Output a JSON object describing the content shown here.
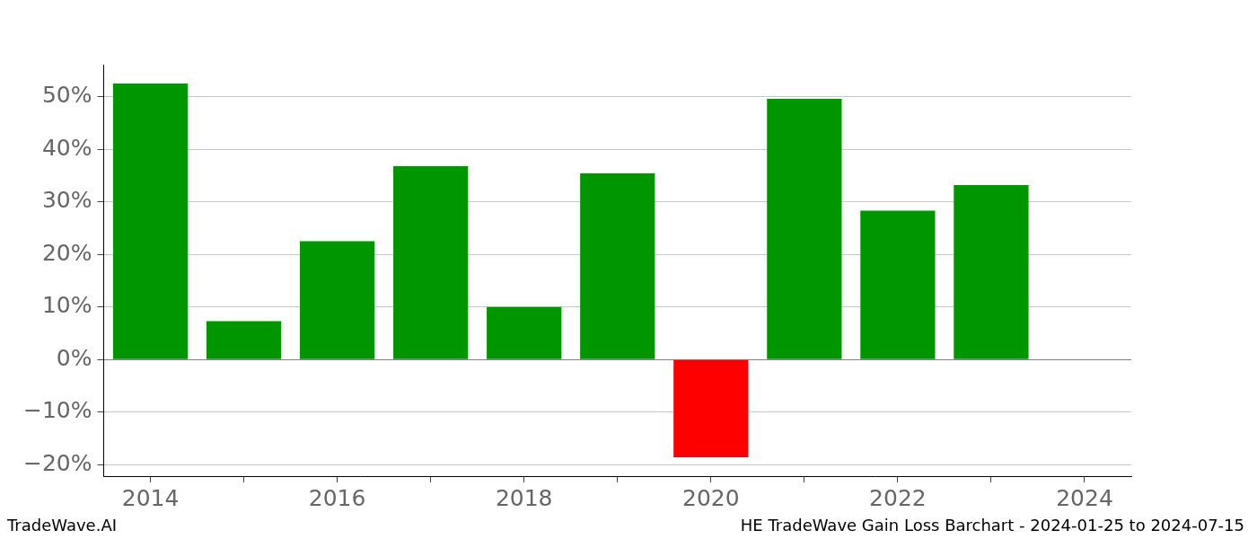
{
  "chart_data": {
    "type": "bar",
    "categories": [
      "2014",
      null,
      "2016",
      null,
      "2018",
      null,
      "2020",
      null,
      "2022",
      null,
      "2024"
    ],
    "values": [
      52.5,
      7.3,
      22.5,
      36.8,
      10.0,
      35.4,
      -18.6,
      49.6,
      28.3,
      33.2,
      null
    ],
    "colors": [
      "#009600",
      "#009600",
      "#009600",
      "#009600",
      "#009600",
      "#009600",
      "#ff0000",
      "#009600",
      "#009600",
      "#009600",
      "#009600"
    ],
    "ylim": [
      -22.2,
      56.1
    ],
    "yticks": [
      {
        "value": -20,
        "label": "−20%"
      },
      {
        "value": -10,
        "label": "−10%"
      },
      {
        "value": 0,
        "label": "0%"
      },
      {
        "value": 10,
        "label": "10%"
      },
      {
        "value": 20,
        "label": "20%"
      },
      {
        "value": 30,
        "label": "30%"
      },
      {
        "value": 40,
        "label": "40%"
      },
      {
        "value": 50,
        "label": "50%"
      }
    ],
    "grid": true,
    "footer_left": "TradeWave.AI",
    "footer_right": "HE TradeWave Gain Loss Barchart - 2024-01-25 to 2024-07-15"
  }
}
